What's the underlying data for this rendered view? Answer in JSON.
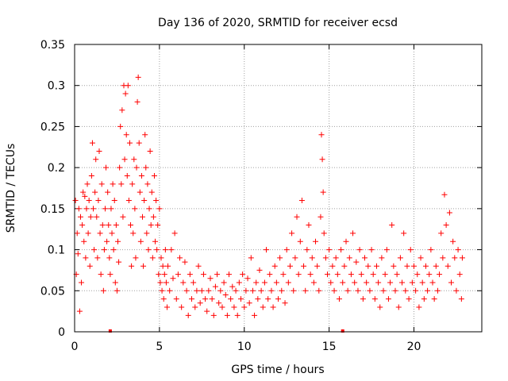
{
  "chart_data": {
    "type": "scatter",
    "title": "Day 136 of 2020, SRMTID for receiver ecsd",
    "xlabel": "GPS time / hours",
    "ylabel": "SRMTID / TECUs",
    "xlim": [
      0,
      24
    ],
    "ylim": [
      0,
      0.35
    ],
    "grid": true,
    "marker": "plus",
    "series_color": "#ff0000",
    "grid_color": "#a0a0a0",
    "x_ticks": [
      {
        "value": 0,
        "label": "0"
      },
      {
        "value": 5,
        "label": "5"
      },
      {
        "value": 10,
        "label": "10"
      },
      {
        "value": 15,
        "label": "15"
      },
      {
        "value": 20,
        "label": "20"
      }
    ],
    "y_ticks": [
      {
        "value": 0,
        "label": "0"
      },
      {
        "value": 0.05,
        "label": "0.05"
      },
      {
        "value": 0.1,
        "label": "0.1"
      },
      {
        "value": 0.15,
        "label": "0.15"
      },
      {
        "value": 0.2,
        "label": "0.2"
      },
      {
        "value": 0.25,
        "label": "0.25"
      },
      {
        "value": 0.3,
        "label": "0.3"
      },
      {
        "value": 0.35,
        "label": "0.35"
      }
    ],
    "data_gap_markers_x": [
      2.1,
      15.8
    ],
    "series": [
      {
        "name": "SRMTID",
        "points": [
          [
            0.05,
            0.16
          ],
          [
            0.1,
            0.07
          ],
          [
            0.15,
            0.12
          ],
          [
            0.2,
            0.095
          ],
          [
            0.25,
            0.15
          ],
          [
            0.3,
            0.025
          ],
          [
            0.35,
            0.14
          ],
          [
            0.4,
            0.06
          ],
          [
            0.45,
            0.13
          ],
          [
            0.5,
            0.17
          ],
          [
            0.55,
            0.11
          ],
          [
            0.6,
            0.165
          ],
          [
            0.65,
            0.09
          ],
          [
            0.7,
            0.15
          ],
          [
            0.75,
            0.18
          ],
          [
            0.8,
            0.12
          ],
          [
            0.85,
            0.16
          ],
          [
            0.9,
            0.08
          ],
          [
            0.95,
            0.14
          ],
          [
            1.0,
            0.19
          ],
          [
            1.05,
            0.23
          ],
          [
            1.1,
            0.15
          ],
          [
            1.15,
            0.1
          ],
          [
            1.2,
            0.17
          ],
          [
            1.25,
            0.21
          ],
          [
            1.3,
            0.14
          ],
          [
            1.35,
            0.09
          ],
          [
            1.4,
            0.16
          ],
          [
            1.45,
            0.22
          ],
          [
            1.5,
            0.12
          ],
          [
            1.55,
            0.07
          ],
          [
            1.6,
            0.18
          ],
          [
            1.65,
            0.13
          ],
          [
            1.7,
            0.05
          ],
          [
            1.75,
            0.1
          ],
          [
            1.8,
            0.15
          ],
          [
            1.85,
            0.2
          ],
          [
            1.9,
            0.11
          ],
          [
            1.95,
            0.17
          ],
          [
            2.0,
            0.13
          ],
          [
            2.05,
            0.09
          ],
          [
            2.1,
            0.07
          ],
          [
            2.15,
            0.15
          ],
          [
            2.2,
            0.12
          ],
          [
            2.25,
            0.18
          ],
          [
            2.3,
            0.1
          ],
          [
            2.35,
            0.16
          ],
          [
            2.4,
            0.06
          ],
          [
            2.45,
            0.13
          ],
          [
            2.5,
            0.05
          ],
          [
            2.55,
            0.11
          ],
          [
            2.6,
            0.085
          ],
          [
            2.65,
            0.2
          ],
          [
            2.7,
            0.25
          ],
          [
            2.75,
            0.18
          ],
          [
            2.8,
            0.27
          ],
          [
            2.85,
            0.14
          ],
          [
            2.9,
            0.3
          ],
          [
            2.95,
            0.21
          ],
          [
            3.0,
            0.29
          ],
          [
            3.05,
            0.24
          ],
          [
            3.1,
            0.19
          ],
          [
            3.15,
            0.3
          ],
          [
            3.2,
            0.16
          ],
          [
            3.25,
            0.23
          ],
          [
            3.3,
            0.13
          ],
          [
            3.35,
            0.08
          ],
          [
            3.4,
            0.18
          ],
          [
            3.45,
            0.12
          ],
          [
            3.5,
            0.21
          ],
          [
            3.55,
            0.15
          ],
          [
            3.6,
            0.09
          ],
          [
            3.65,
            0.2
          ],
          [
            3.7,
            0.28
          ],
          [
            3.75,
            0.31
          ],
          [
            3.8,
            0.23
          ],
          [
            3.85,
            0.17
          ],
          [
            3.9,
            0.11
          ],
          [
            3.95,
            0.19
          ],
          [
            4.0,
            0.14
          ],
          [
            4.05,
            0.08
          ],
          [
            4.1,
            0.16
          ],
          [
            4.15,
            0.24
          ],
          [
            4.2,
            0.2
          ],
          [
            4.25,
            0.12
          ],
          [
            4.3,
            0.18
          ],
          [
            4.35,
            0.1
          ],
          [
            4.4,
            0.15
          ],
          [
            4.45,
            0.22
          ],
          [
            4.5,
            0.13
          ],
          [
            4.55,
            0.17
          ],
          [
            4.6,
            0.09
          ],
          [
            4.65,
            0.14
          ],
          [
            4.7,
            0.19
          ],
          [
            4.75,
            0.11
          ],
          [
            4.8,
            0.16
          ],
          [
            4.85,
            0.1
          ],
          [
            4.9,
            0.13
          ],
          [
            4.95,
            0.07
          ],
          [
            5.0,
            0.15
          ],
          [
            5.05,
            0.06
          ],
          [
            5.1,
            0.09
          ],
          [
            5.15,
            0.05
          ],
          [
            5.2,
            0.08
          ],
          [
            5.25,
            0.04
          ],
          [
            5.3,
            0.07
          ],
          [
            5.35,
            0.1
          ],
          [
            5.4,
            0.06
          ],
          [
            5.45,
            0.03
          ],
          [
            5.5,
            0.08
          ],
          [
            5.6,
            0.05
          ],
          [
            5.7,
            0.1
          ],
          [
            5.8,
            0.065
          ],
          [
            5.9,
            0.12
          ],
          [
            6.0,
            0.04
          ],
          [
            6.1,
            0.07
          ],
          [
            6.2,
            0.09
          ],
          [
            6.3,
            0.03
          ],
          [
            6.4,
            0.06
          ],
          [
            6.5,
            0.085
          ],
          [
            6.6,
            0.05
          ],
          [
            6.7,
            0.02
          ],
          [
            6.8,
            0.07
          ],
          [
            6.9,
            0.04
          ],
          [
            7.0,
            0.06
          ],
          [
            7.1,
            0.03
          ],
          [
            7.2,
            0.05
          ],
          [
            7.3,
            0.08
          ],
          [
            7.4,
            0.035
          ],
          [
            7.5,
            0.05
          ],
          [
            7.6,
            0.07
          ],
          [
            7.7,
            0.04
          ],
          [
            7.8,
            0.025
          ],
          [
            7.9,
            0.05
          ],
          [
            8.0,
            0.065
          ],
          [
            8.1,
            0.04
          ],
          [
            8.2,
            0.02
          ],
          [
            8.3,
            0.055
          ],
          [
            8.4,
            0.07
          ],
          [
            8.5,
            0.035
          ],
          [
            8.6,
            0.05
          ],
          [
            8.7,
            0.03
          ],
          [
            8.8,
            0.06
          ],
          [
            8.9,
            0.045
          ],
          [
            9.0,
            0.02
          ],
          [
            9.1,
            0.07
          ],
          [
            9.2,
            0.04
          ],
          [
            9.3,
            0.055
          ],
          [
            9.4,
            0.03
          ],
          [
            9.5,
            0.05
          ],
          [
            9.6,
            0.02
          ],
          [
            9.7,
            0.06
          ],
          [
            9.8,
            0.04
          ],
          [
            9.9,
            0.07
          ],
          [
            10.0,
            0.03
          ],
          [
            10.1,
            0.05
          ],
          [
            10.2,
            0.065
          ],
          [
            10.3,
            0.035
          ],
          [
            10.4,
            0.09
          ],
          [
            10.5,
            0.05
          ],
          [
            10.6,
            0.02
          ],
          [
            10.7,
            0.06
          ],
          [
            10.8,
            0.04
          ],
          [
            10.9,
            0.075
          ],
          [
            11.0,
            0.05
          ],
          [
            11.1,
            0.03
          ],
          [
            11.2,
            0.06
          ],
          [
            11.3,
            0.1
          ],
          [
            11.4,
            0.04
          ],
          [
            11.5,
            0.07
          ],
          [
            11.6,
            0.05
          ],
          [
            11.7,
            0.03
          ],
          [
            11.8,
            0.08
          ],
          [
            11.9,
            0.06
          ],
          [
            12.0,
            0.04
          ],
          [
            12.1,
            0.09
          ],
          [
            12.2,
            0.05
          ],
          [
            12.3,
            0.07
          ],
          [
            12.4,
            0.035
          ],
          [
            12.5,
            0.1
          ],
          [
            12.6,
            0.06
          ],
          [
            12.7,
            0.08
          ],
          [
            12.8,
            0.12
          ],
          [
            12.9,
            0.05
          ],
          [
            13.0,
            0.09
          ],
          [
            13.1,
            0.14
          ],
          [
            13.2,
            0.07
          ],
          [
            13.3,
            0.11
          ],
          [
            13.4,
            0.16
          ],
          [
            13.5,
            0.08
          ],
          [
            13.6,
            0.05
          ],
          [
            13.7,
            0.1
          ],
          [
            13.8,
            0.13
          ],
          [
            13.9,
            0.07
          ],
          [
            14.0,
            0.09
          ],
          [
            14.1,
            0.06
          ],
          [
            14.2,
            0.11
          ],
          [
            14.3,
            0.08
          ],
          [
            14.4,
            0.05
          ],
          [
            14.5,
            0.14
          ],
          [
            14.55,
            0.24
          ],
          [
            14.6,
            0.21
          ],
          [
            14.65,
            0.17
          ],
          [
            14.7,
            0.12
          ],
          [
            14.8,
            0.09
          ],
          [
            14.9,
            0.07
          ],
          [
            15.0,
            0.1
          ],
          [
            15.1,
            0.06
          ],
          [
            15.2,
            0.08
          ],
          [
            15.3,
            0.05
          ],
          [
            15.4,
            0.09
          ],
          [
            15.5,
            0.07
          ],
          [
            15.6,
            0.04
          ],
          [
            15.7,
            0.1
          ],
          [
            15.8,
            0.06
          ],
          [
            15.9,
            0.08
          ],
          [
            16.0,
            0.11
          ],
          [
            16.1,
            0.05
          ],
          [
            16.2,
            0.09
          ],
          [
            16.3,
            0.07
          ],
          [
            16.4,
            0.12
          ],
          [
            16.5,
            0.06
          ],
          [
            16.6,
            0.085
          ],
          [
            16.7,
            0.05
          ],
          [
            16.8,
            0.1
          ],
          [
            16.9,
            0.07
          ],
          [
            17.0,
            0.04
          ],
          [
            17.1,
            0.09
          ],
          [
            17.2,
            0.06
          ],
          [
            17.3,
            0.08
          ],
          [
            17.4,
            0.05
          ],
          [
            17.5,
            0.1
          ],
          [
            17.6,
            0.07
          ],
          [
            17.7,
            0.04
          ],
          [
            17.8,
            0.08
          ],
          [
            17.9,
            0.06
          ],
          [
            18.0,
            0.03
          ],
          [
            18.1,
            0.09
          ],
          [
            18.2,
            0.05
          ],
          [
            18.3,
            0.07
          ],
          [
            18.4,
            0.1
          ],
          [
            18.5,
            0.04
          ],
          [
            18.6,
            0.06
          ],
          [
            18.7,
            0.13
          ],
          [
            18.8,
            0.08
          ],
          [
            18.9,
            0.05
          ],
          [
            19.0,
            0.07
          ],
          [
            19.1,
            0.03
          ],
          [
            19.2,
            0.09
          ],
          [
            19.3,
            0.06
          ],
          [
            19.4,
            0.12
          ],
          [
            19.5,
            0.05
          ],
          [
            19.6,
            0.08
          ],
          [
            19.7,
            0.04
          ],
          [
            19.8,
            0.1
          ],
          [
            19.9,
            0.06
          ],
          [
            20.0,
            0.08
          ],
          [
            20.1,
            0.05
          ],
          [
            20.2,
            0.07
          ],
          [
            20.3,
            0.03
          ],
          [
            20.4,
            0.09
          ],
          [
            20.5,
            0.06
          ],
          [
            20.6,
            0.04
          ],
          [
            20.7,
            0.08
          ],
          [
            20.8,
            0.05
          ],
          [
            20.9,
            0.07
          ],
          [
            21.0,
            0.1
          ],
          [
            21.1,
            0.06
          ],
          [
            21.2,
            0.04
          ],
          [
            21.3,
            0.08
          ],
          [
            21.4,
            0.05
          ],
          [
            21.5,
            0.07
          ],
          [
            21.6,
            0.12
          ],
          [
            21.7,
            0.09
          ],
          [
            21.8,
            0.167
          ],
          [
            21.9,
            0.13
          ],
          [
            22.0,
            0.08
          ],
          [
            22.1,
            0.145
          ],
          [
            22.2,
            0.06
          ],
          [
            22.3,
            0.11
          ],
          [
            22.4,
            0.09
          ],
          [
            22.5,
            0.05
          ],
          [
            22.6,
            0.1
          ],
          [
            22.7,
            0.07
          ],
          [
            22.8,
            0.04
          ],
          [
            22.85,
            0.09
          ]
        ]
      }
    ]
  }
}
